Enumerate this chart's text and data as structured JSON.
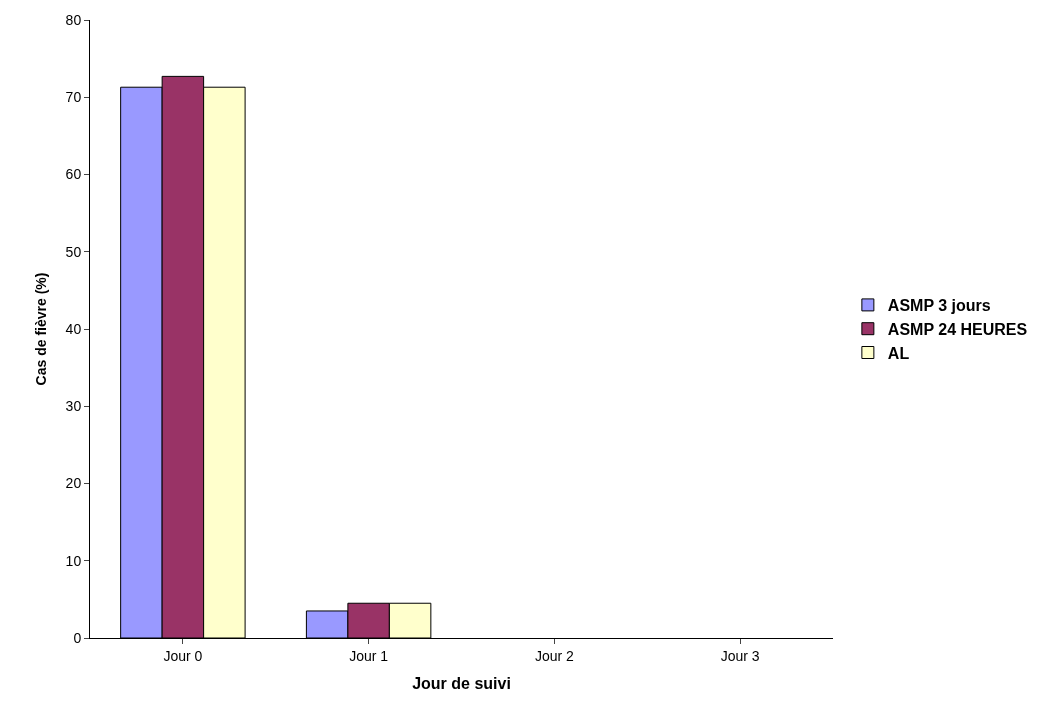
{
  "chart_data": {
    "type": "bar",
    "xlabel": "Jour de suivi",
    "ylabel": "Cas de fièvre (%)",
    "categories": [
      "Jour 0",
      "Jour 1",
      "Jour 2",
      "Jour 3"
    ],
    "series": [
      {
        "name": "ASMP 3 jours",
        "color": "#9999ff",
        "values": [
          71.3,
          3.5,
          0,
          0
        ]
      },
      {
        "name": "ASMP 24 HEURES",
        "color": "#993366",
        "values": [
          72.7,
          4.5,
          0,
          0
        ]
      },
      {
        "name": "AL",
        "color": "#ffffcc",
        "values": [
          71.3,
          4.5,
          0,
          0
        ]
      }
    ],
    "ylim": [
      0,
      80
    ],
    "yticks": [
      0,
      10,
      20,
      30,
      40,
      50,
      60,
      70,
      80
    ],
    "legend": "right"
  }
}
